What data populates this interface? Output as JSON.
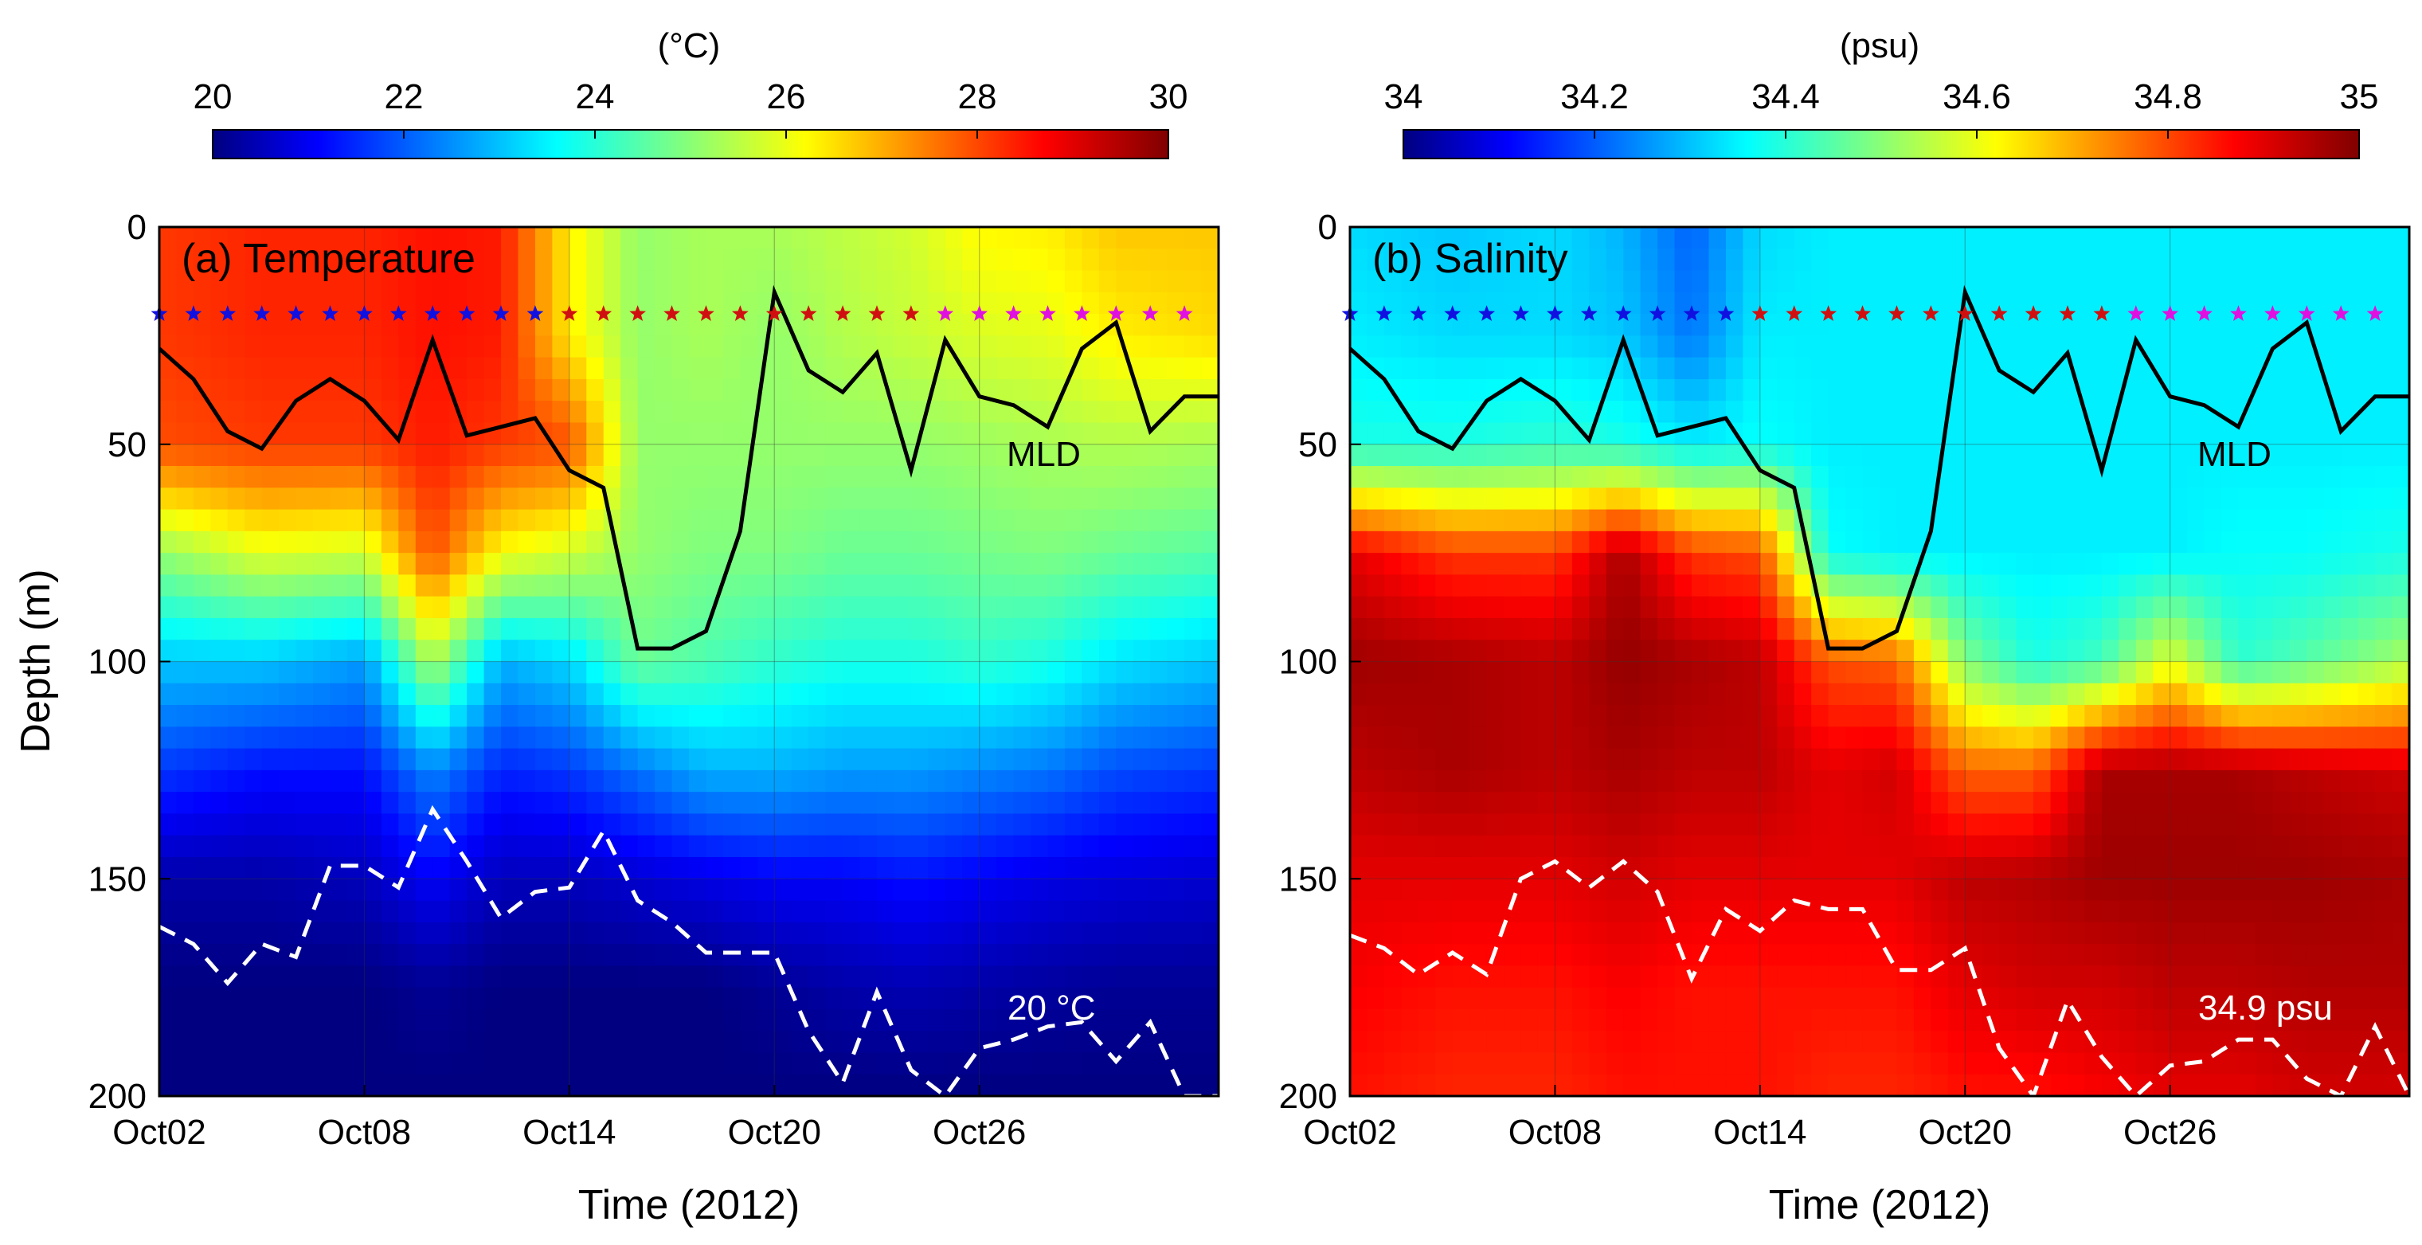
{
  "chart_data": [
    {
      "type": "heatmap",
      "panel": "a",
      "title": "(a) Temperature",
      "xlabel": "Time (2012)",
      "ylabel": "Depth (m)",
      "xlim_day": [
        2,
        33
      ],
      "ylim": [
        0,
        200
      ],
      "x_ticks": [
        {
          "day": 2,
          "label": "Oct02"
        },
        {
          "day": 8,
          "label": "Oct08"
        },
        {
          "day": 14,
          "label": "Oct14"
        },
        {
          "day": 20,
          "label": "Oct20"
        },
        {
          "day": 26,
          "label": "Oct26"
        }
      ],
      "y_ticks": [
        0,
        50,
        100,
        150,
        200
      ],
      "colorbar": {
        "unit": "(°C)",
        "min": 20,
        "max": 30,
        "ticks": [
          "20",
          "22",
          "24",
          "26",
          "28",
          "30"
        ],
        "colormap": "jet"
      },
      "field": {
        "description": "temperature (°C) vs depth, rows = depth levels, columns = days",
        "depths": [
          0,
          25,
          50,
          75,
          100,
          125,
          150,
          175,
          200
        ],
        "days": [
          2,
          5,
          8,
          10,
          12,
          14,
          16,
          18,
          20,
          22,
          24,
          26,
          28,
          30,
          33
        ],
        "values": [
          [
            28.2,
            28.4,
            28.4,
            28.6,
            28.5,
            26.4,
            25.2,
            25.4,
            25.4,
            25.6,
            25.8,
            26.3,
            26.4,
            26.8,
            26.8
          ],
          [
            28.2,
            28.4,
            28.4,
            28.6,
            28.5,
            26.4,
            25.2,
            25.4,
            25.2,
            25.5,
            25.7,
            25.9,
            26.0,
            26.4,
            26.6
          ],
          [
            28.0,
            28.2,
            28.2,
            28.5,
            28.2,
            28.0,
            25.2,
            25.2,
            25.2,
            25.2,
            25.2,
            25.3,
            25.4,
            25.5,
            25.4
          ],
          [
            25.2,
            26.0,
            25.8,
            28.0,
            26.2,
            25.8,
            25.2,
            25.0,
            25.0,
            24.8,
            24.8,
            24.9,
            25.0,
            24.8,
            24.6
          ],
          [
            23.2,
            23.2,
            22.8,
            25.5,
            23.0,
            23.4,
            24.8,
            24.5,
            24.2,
            24.0,
            24.0,
            24.2,
            24.0,
            23.5,
            23.2
          ],
          [
            21.8,
            21.4,
            21.4,
            22.6,
            21.6,
            21.8,
            22.4,
            23.0,
            23.0,
            22.8,
            22.8,
            22.6,
            22.4,
            22.0,
            21.8
          ],
          [
            20.4,
            20.4,
            20.6,
            21.2,
            20.6,
            20.6,
            20.8,
            21.0,
            21.2,
            21.2,
            21.4,
            21.2,
            21.0,
            20.9,
            20.8
          ],
          [
            20.0,
            20.0,
            20.0,
            20.2,
            20.0,
            20.0,
            20.0,
            20.0,
            20.2,
            20.4,
            20.5,
            20.4,
            20.3,
            20.2,
            20.2
          ],
          [
            20.0,
            20.0,
            20.0,
            20.0,
            20.0,
            20.0,
            20.0,
            20.0,
            20.0,
            20.0,
            20.0,
            20.0,
            20.0,
            20.0,
            20.0
          ]
        ]
      },
      "mld": {
        "label": "MLD",
        "days": [
          2,
          3,
          4,
          5,
          6,
          7,
          8,
          9,
          10,
          11,
          12,
          13,
          14,
          15,
          16,
          17,
          18,
          19,
          20,
          21,
          22,
          23,
          24,
          25,
          26,
          27,
          28,
          29,
          30,
          31,
          32,
          33
        ],
        "depth": [
          28,
          35,
          47,
          51,
          40,
          35,
          40,
          49,
          26,
          48,
          46,
          44,
          56,
          60,
          97,
          97,
          93,
          70,
          15,
          33,
          38,
          29,
          56,
          26,
          39,
          41,
          46,
          28,
          22,
          47,
          39,
          39
        ]
      },
      "isoline": {
        "label": "20 °C",
        "days": [
          2,
          3,
          4,
          5,
          6,
          7,
          8,
          9,
          10,
          11,
          12,
          13,
          14,
          15,
          16,
          17,
          18,
          19,
          20,
          21,
          22,
          23,
          24,
          25,
          26,
          27,
          28,
          29,
          30,
          31,
          32,
          33
        ],
        "depth": [
          161,
          165,
          174,
          165,
          168,
          147,
          147,
          152,
          134,
          146,
          159,
          153,
          152,
          139,
          155,
          160,
          167,
          167,
          167,
          185,
          197,
          176,
          194,
          200,
          189,
          187,
          184,
          183,
          192,
          183,
          200,
          200
        ]
      },
      "stars": {
        "depth": 20,
        "blue_days": [
          2,
          3,
          4,
          5,
          6,
          7,
          8,
          9,
          10,
          11,
          12,
          13
        ],
        "red_days": [
          14,
          15,
          16,
          17,
          18,
          19,
          20,
          21,
          22,
          23,
          24
        ],
        "magenta_days": [
          25,
          26,
          27,
          28,
          29,
          30,
          31,
          32
        ]
      }
    },
    {
      "type": "heatmap",
      "panel": "b",
      "title": "(b) Salinity",
      "xlabel": "Time (2012)",
      "ylabel": "",
      "xlim_day": [
        2,
        33
      ],
      "ylim": [
        0,
        200
      ],
      "x_ticks": [
        {
          "day": 2,
          "label": "Oct02"
        },
        {
          "day": 8,
          "label": "Oct08"
        },
        {
          "day": 14,
          "label": "Oct14"
        },
        {
          "day": 20,
          "label": "Oct20"
        },
        {
          "day": 26,
          "label": "Oct26"
        }
      ],
      "y_ticks": [
        0,
        50,
        100,
        150,
        200
      ],
      "colorbar": {
        "unit": "(psu)",
        "min": 34.0,
        "max": 35.0,
        "ticks": [
          "34",
          "34.2",
          "34.4",
          "34.6",
          "34.8",
          "35"
        ],
        "colormap": "jet"
      },
      "field": {
        "description": "salinity (psu) vs depth, rows = depth levels, columns = days",
        "depths": [
          0,
          25,
          50,
          75,
          100,
          125,
          150,
          175,
          200
        ],
        "days": [
          2,
          5,
          8,
          10,
          12,
          14,
          16,
          18,
          20,
          22,
          24,
          26,
          28,
          30,
          33
        ],
        "values": [
          [
            34.34,
            34.32,
            34.34,
            34.3,
            34.22,
            34.34,
            34.36,
            34.36,
            34.36,
            34.36,
            34.36,
            34.36,
            34.36,
            34.36,
            34.36
          ],
          [
            34.36,
            34.34,
            34.34,
            34.32,
            34.24,
            34.36,
            34.36,
            34.36,
            34.36,
            34.36,
            34.36,
            34.36,
            34.36,
            34.36,
            34.36
          ],
          [
            34.4,
            34.4,
            34.42,
            34.4,
            34.36,
            34.38,
            34.36,
            34.36,
            34.36,
            34.36,
            34.36,
            34.36,
            34.36,
            34.36,
            34.36
          ],
          [
            34.9,
            34.82,
            34.82,
            34.96,
            34.82,
            34.8,
            34.38,
            34.36,
            34.36,
            34.36,
            34.36,
            34.36,
            34.38,
            34.38,
            34.4
          ],
          [
            34.97,
            34.96,
            34.94,
            34.98,
            34.96,
            34.94,
            34.8,
            34.78,
            34.5,
            34.4,
            34.44,
            34.6,
            34.42,
            34.46,
            34.54
          ],
          [
            34.94,
            34.96,
            34.94,
            34.96,
            34.94,
            34.94,
            34.9,
            34.92,
            34.78,
            34.78,
            34.96,
            34.96,
            34.96,
            34.94,
            34.92
          ],
          [
            34.9,
            34.9,
            34.9,
            34.92,
            34.9,
            34.9,
            34.9,
            34.9,
            34.94,
            34.95,
            34.97,
            34.97,
            34.97,
            34.97,
            34.96
          ],
          [
            34.88,
            34.86,
            34.86,
            34.88,
            34.86,
            34.86,
            34.86,
            34.86,
            34.9,
            34.92,
            34.92,
            34.94,
            34.94,
            34.95,
            34.95
          ],
          [
            34.86,
            34.84,
            34.84,
            34.86,
            34.86,
            34.86,
            34.84,
            34.84,
            34.86,
            34.86,
            34.88,
            34.9,
            34.9,
            34.92,
            34.92
          ]
        ]
      },
      "mld": {
        "label": "MLD",
        "days": [
          2,
          3,
          4,
          5,
          6,
          7,
          8,
          9,
          10,
          11,
          12,
          13,
          14,
          15,
          16,
          17,
          18,
          19,
          20,
          21,
          22,
          23,
          24,
          25,
          26,
          27,
          28,
          29,
          30,
          31,
          32,
          33
        ],
        "depth": [
          28,
          35,
          47,
          51,
          40,
          35,
          40,
          49,
          26,
          48,
          46,
          44,
          56,
          60,
          97,
          97,
          93,
          70,
          15,
          33,
          38,
          29,
          56,
          26,
          39,
          41,
          46,
          28,
          22,
          47,
          39,
          39
        ]
      },
      "isoline": {
        "label": "34.9 psu",
        "days": [
          2,
          3,
          4,
          5,
          6,
          7,
          8,
          9,
          10,
          11,
          12,
          13,
          14,
          15,
          16,
          17,
          18,
          19,
          20,
          21,
          22,
          23,
          24,
          25,
          26,
          27,
          28,
          29,
          30,
          31,
          32,
          33
        ],
        "depth": [
          163,
          166,
          172,
          167,
          172,
          150,
          146,
          152,
          146,
          153,
          173,
          157,
          162,
          155,
          157,
          157,
          171,
          171,
          166,
          189,
          200,
          178,
          191,
          200,
          193,
          192,
          187,
          187,
          196,
          200,
          184,
          200
        ]
      },
      "stars": {
        "depth": 20,
        "blue_days": [
          2,
          3,
          4,
          5,
          6,
          7,
          8,
          9,
          10,
          11,
          12,
          13
        ],
        "red_days": [
          14,
          15,
          16,
          17,
          18,
          19,
          20,
          21,
          22,
          23,
          24
        ],
        "magenta_days": [
          25,
          26,
          27,
          28,
          29,
          30,
          31,
          32
        ]
      }
    }
  ],
  "colors": {
    "mld_line": "#000000",
    "isoline": "#ffffff",
    "star_blue": "#1010e0",
    "star_red": "#d01010",
    "star_magenta": "#e010e0",
    "grid": "#333333"
  }
}
